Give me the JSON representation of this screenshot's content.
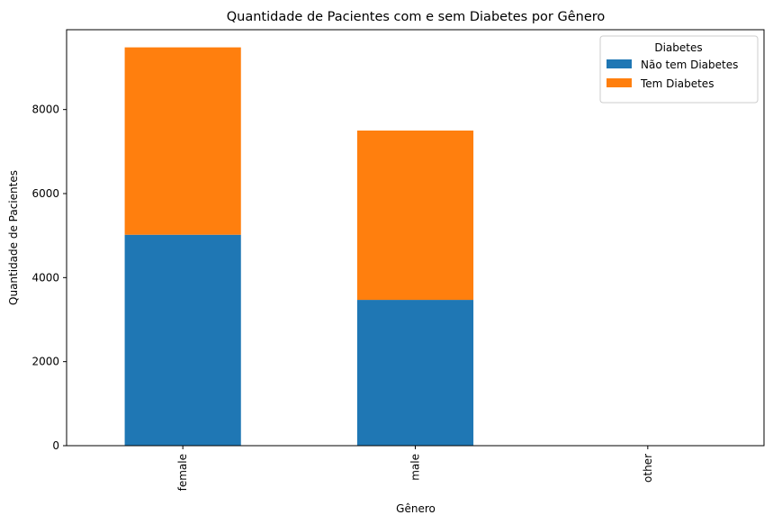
{
  "chart_data": {
    "type": "bar",
    "stacked": true,
    "title": "Quantidade de Pacientes com e sem Diabetes por Gênero",
    "xlabel": "Gênero",
    "ylabel": "Quantidade de Pacientes",
    "categories": [
      "female",
      "male",
      "other"
    ],
    "series": [
      {
        "name": "Não tem Diabetes",
        "color": "#1f77b4",
        "values": [
          5020,
          3470,
          0
        ]
      },
      {
        "name": "Tem Diabetes",
        "color": "#ff7f0e",
        "values": [
          4460,
          4030,
          0
        ]
      }
    ],
    "ylim": [
      0,
      9900
    ],
    "yticks": [
      0,
      2000,
      4000,
      6000,
      8000
    ],
    "xtick_rotation": 90,
    "grid": false,
    "legend": {
      "title": "Diabetes",
      "placement": "top-right"
    }
  }
}
